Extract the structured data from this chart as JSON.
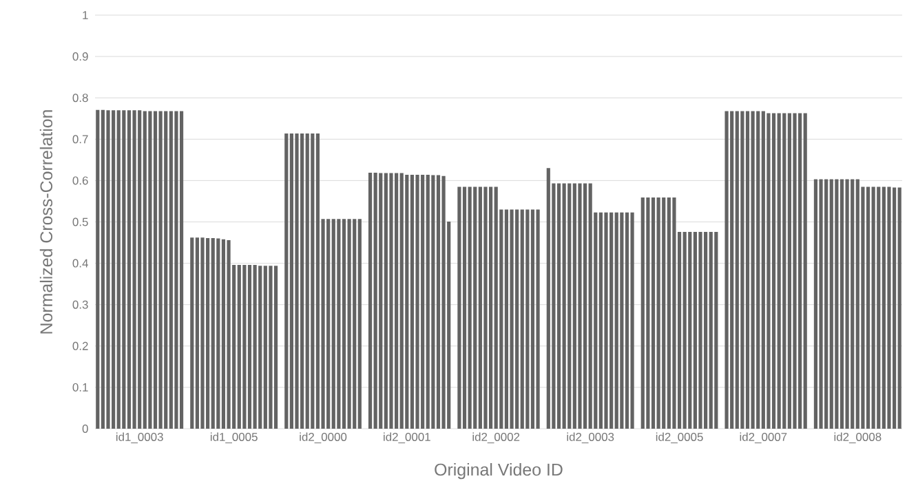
{
  "chart_data": {
    "type": "bar",
    "xlabel": "Original Video ID",
    "ylabel": "Normalized Cross-Correlation",
    "color": "#636363",
    "grid": "y",
    "ylim": [
      0,
      1
    ],
    "yticks": [
      0,
      0.1,
      0.2,
      0.3,
      0.4,
      0.5,
      0.6,
      0.7,
      0.8,
      0.9,
      1
    ],
    "categories": [
      null,
      null,
      null,
      null,
      null,
      null,
      null,
      null,
      "id1_0003",
      null,
      null,
      null,
      null,
      null,
      null,
      null,
      null,
      null,
      null,
      null,
      null,
      null,
      null,
      null,
      null,
      null,
      "id1_0005",
      null,
      null,
      null,
      null,
      null,
      null,
      null,
      null,
      null,
      null,
      null,
      null,
      null,
      null,
      null,
      null,
      "id2_0000",
      null,
      null,
      null,
      null,
      null,
      null,
      null,
      null,
      null,
      null,
      null,
      null,
      null,
      null,
      null,
      "id2_0001",
      null,
      null,
      null,
      null,
      null,
      null,
      null,
      null,
      null,
      null,
      null,
      null,
      null,
      null,
      null,
      null,
      "id2_0002",
      null,
      null,
      null,
      null,
      null,
      null,
      null,
      null,
      null,
      null,
      null,
      null,
      null,
      null,
      null,
      null,
      null,
      "id2_0003",
      null,
      null,
      null,
      null,
      null,
      null,
      null,
      null,
      null,
      null,
      null,
      null,
      null,
      null,
      null,
      null,
      "id2_0005",
      null,
      null,
      null,
      null,
      null,
      null,
      null,
      null,
      null,
      null,
      null,
      null,
      null,
      null,
      null,
      "id2_0007",
      null,
      null,
      null,
      null,
      null,
      null,
      null,
      null,
      null,
      null,
      null,
      null,
      null,
      null,
      null,
      null,
      null,
      "id2_0008",
      null,
      null,
      null,
      null,
      null,
      null,
      null,
      null
    ],
    "values": [
      0.771,
      0.771,
      0.77,
      0.77,
      0.77,
      0.77,
      0.77,
      0.77,
      0.77,
      0.768,
      0.768,
      0.768,
      0.768,
      0.768,
      0.768,
      0.768,
      0.768,
      null,
      0.462,
      0.462,
      0.462,
      0.461,
      0.461,
      0.46,
      0.458,
      0.456,
      0.396,
      0.396,
      0.396,
      0.396,
      0.396,
      0.394,
      0.394,
      0.394,
      0.394,
      null,
      0.714,
      0.714,
      0.714,
      0.714,
      0.714,
      0.714,
      0.714,
      0.507,
      0.507,
      0.507,
      0.507,
      0.507,
      0.507,
      0.507,
      0.507,
      null,
      0.619,
      0.619,
      0.618,
      0.618,
      0.618,
      0.618,
      0.618,
      0.614,
      0.614,
      0.614,
      0.614,
      0.614,
      0.613,
      0.613,
      0.611,
      0.501,
      null,
      0.585,
      0.585,
      0.585,
      0.585,
      0.585,
      0.585,
      0.585,
      0.585,
      0.53,
      0.53,
      0.53,
      0.53,
      0.53,
      0.53,
      0.53,
      0.53,
      null,
      0.63,
      0.593,
      0.593,
      0.593,
      0.593,
      0.593,
      0.593,
      0.593,
      0.593,
      0.523,
      0.523,
      0.523,
      0.523,
      0.523,
      0.523,
      0.523,
      0.523,
      null,
      0.559,
      0.559,
      0.559,
      0.559,
      0.559,
      0.559,
      0.559,
      0.476,
      0.476,
      0.476,
      0.476,
      0.476,
      0.476,
      0.476,
      0.476,
      null,
      0.768,
      0.768,
      0.768,
      0.768,
      0.768,
      0.768,
      0.768,
      0.768,
      0.763,
      0.763,
      0.763,
      0.763,
      0.763,
      0.763,
      0.763,
      0.763,
      null,
      0.603,
      0.603,
      0.603,
      0.603,
      0.603,
      0.603,
      0.603,
      0.603,
      0.603,
      0.585,
      0.585,
      0.585,
      0.585,
      0.585,
      0.585,
      0.583,
      0.583
    ]
  }
}
